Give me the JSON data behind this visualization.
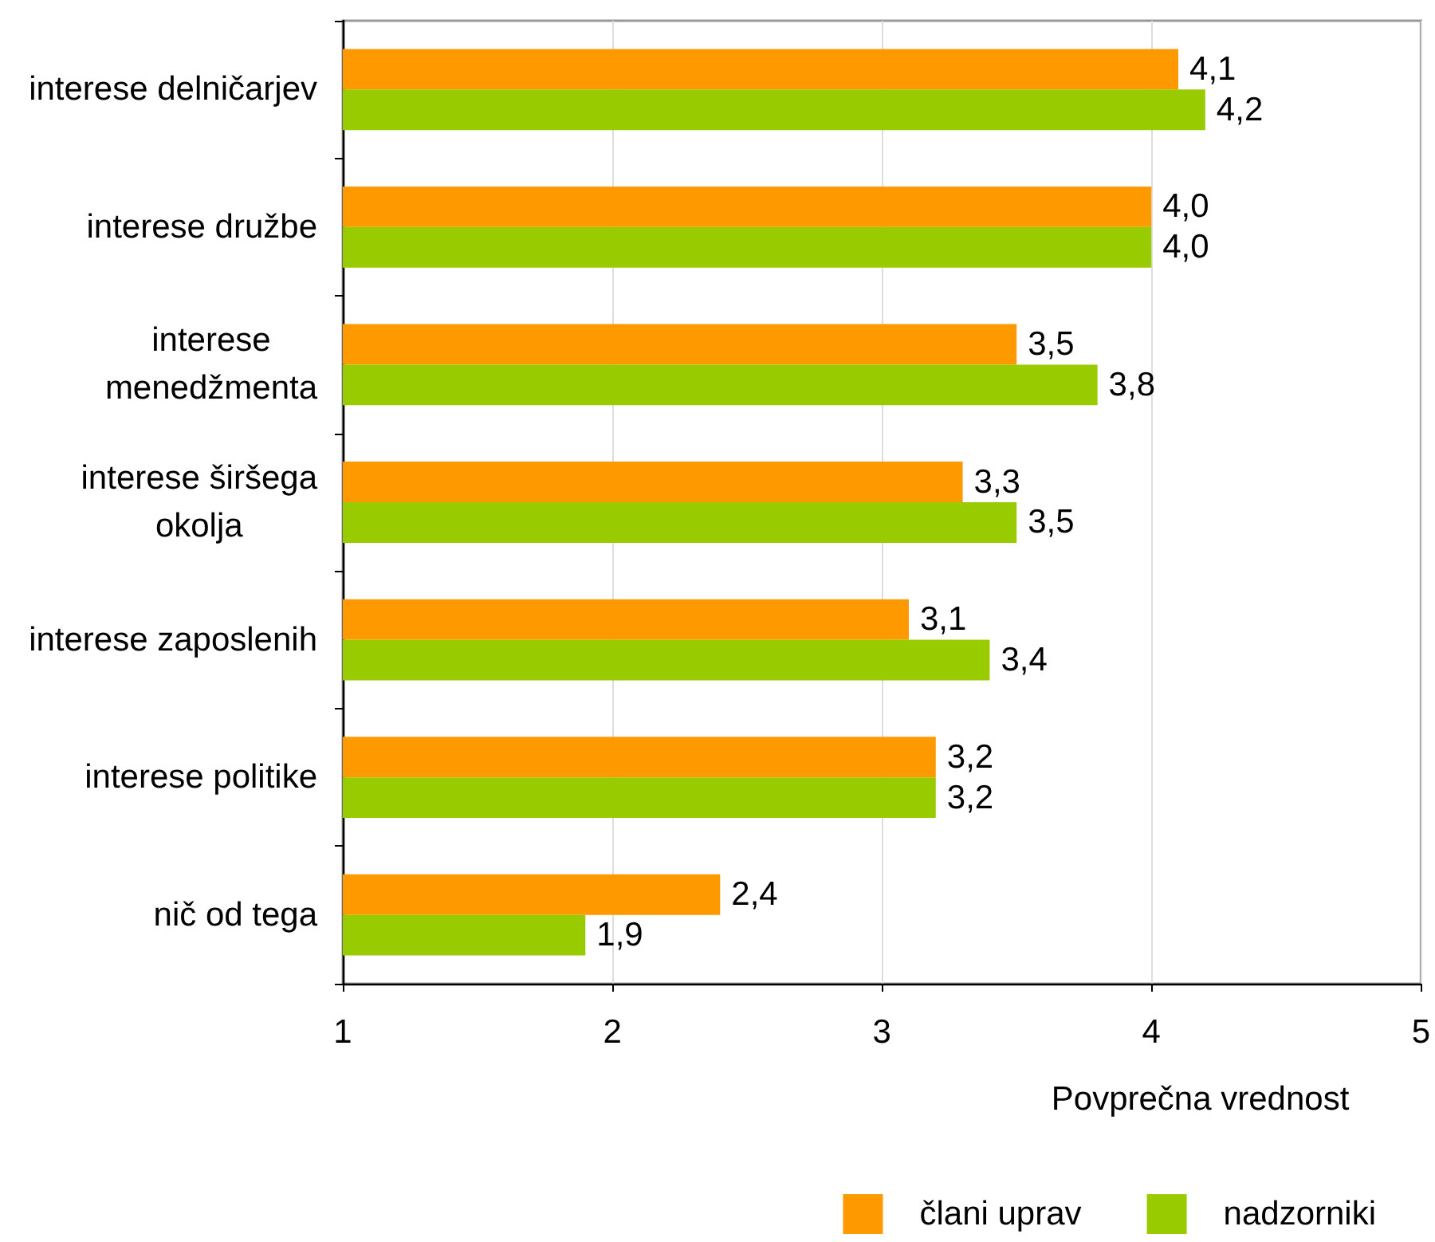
{
  "chart_data": {
    "type": "bar",
    "orientation": "horizontal",
    "xlabel": "Povprečna vrednost",
    "categories": [
      "interese delničarjev",
      "interese družbe",
      "interese\nmenedžmenta",
      "interese širšega\nokolja",
      "interese zaposlenih",
      "interese politike",
      "nič od tega"
    ],
    "series": [
      {
        "name": "člani uprav",
        "color": "#ff9900",
        "values": [
          4.1,
          4.0,
          3.5,
          3.3,
          3.1,
          3.2,
          2.4
        ],
        "value_labels": [
          "4,1",
          "4,0",
          "3,5",
          "3,3",
          "3,1",
          "3,2",
          "2,4"
        ]
      },
      {
        "name": "nadzorniki",
        "color": "#99cc00",
        "values": [
          4.2,
          4.0,
          3.8,
          3.5,
          3.4,
          3.2,
          1.9
        ],
        "value_labels": [
          "4,2",
          "4,0",
          "3,8",
          "3,5",
          "3,4",
          "3,2",
          "1,9"
        ]
      }
    ],
    "xlim": [
      1,
      5
    ],
    "xticks": [
      1,
      2,
      3,
      4,
      5
    ],
    "grid": "x",
    "legend": "bottom right"
  }
}
